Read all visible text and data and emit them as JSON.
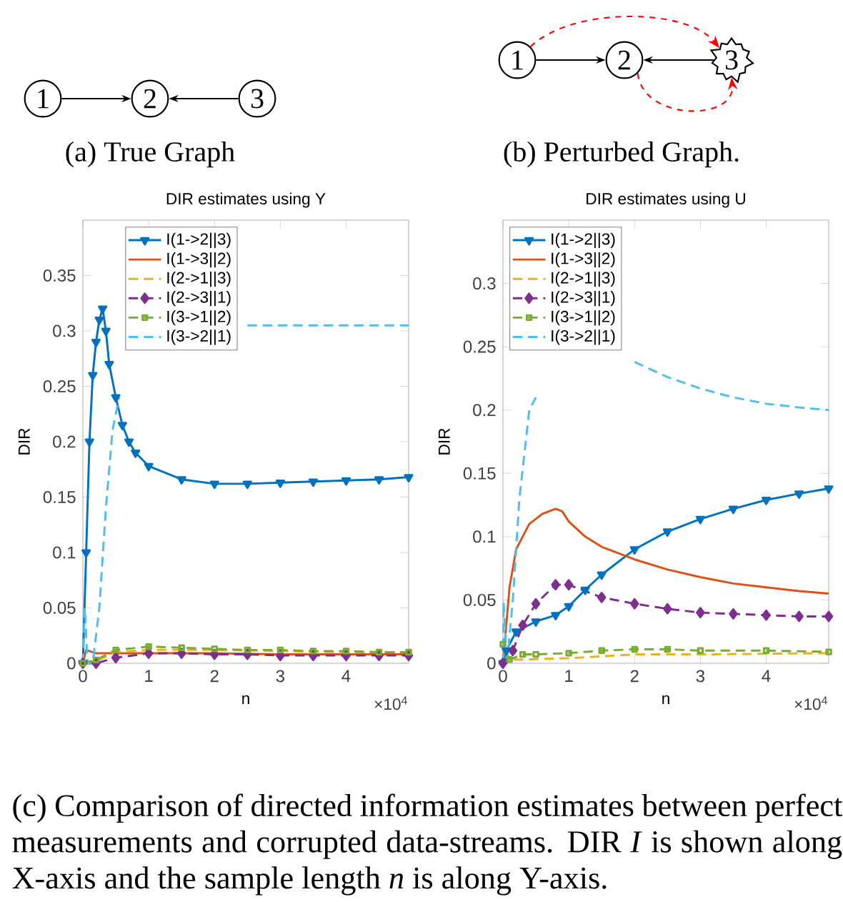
{
  "chart_data": [
    {
      "type": "other",
      "annotations": [
        "1",
        "2",
        "3",
        "(a) True Graph",
        "1",
        "2",
        "3",
        "(b) Perturbed Graph.",
        "(c) Comparison of directed information estimates between perfect measurements and corrupted data-streams. DIR *I* is shown along X-axis and the sample length *n* is along Y-axis."
      ]
    },
    {
      "type": "line",
      "title": "DIR estimates using Y",
      "xlabel": "n",
      "ylabel": "DIR",
      "annotations": [
        "×10$^{4}$"
      ],
      "xlim": [
        0,
        4.95
      ],
      "ylim": [
        0,
        0.4
      ],
      "xticks": [
        0,
        1,
        2,
        3,
        4
      ],
      "yticks": [
        0,
        0.05,
        0.1,
        0.15,
        0.2,
        0.25,
        0.3,
        0.35
      ],
      "legend": "top",
      "grid": false,
      "series": [
        {
          "name": "I(1->2||3)",
          "color": "#0072bd",
          "marker": "triangle",
          "line_style": "solid",
          "x": [
            0,
            0.05,
            0.1,
            0.15,
            0.2,
            0.25,
            0.3,
            0.35,
            0.4,
            0.5,
            0.6,
            0.7,
            0.8,
            1,
            1.5,
            2,
            2.5,
            3,
            3.5,
            4,
            4.5,
            4.95
          ],
          "values": [
            0,
            0.1,
            0.2,
            0.26,
            0.29,
            0.31,
            0.32,
            0.3,
            0.27,
            0.24,
            0.215,
            0.2,
            0.19,
            0.178,
            0.166,
            0.162,
            0.162,
            0.163,
            0.164,
            0.165,
            0.166,
            0.168
          ]
        },
        {
          "name": "I(1->3||2)",
          "color": "#d95319",
          "marker": "none",
          "line_style": "solid",
          "x": [
            0,
            0.05,
            0.2,
            0.5,
            1,
            2,
            3,
            4,
            4.95
          ],
          "values": [
            0,
            0.012,
            0.009,
            0.009,
            0.009,
            0.009,
            0.008,
            0.008,
            0.008
          ]
        },
        {
          "name": "I(2->1||3)",
          "color": "#edb120",
          "marker": "none",
          "line_style": "dashed",
          "x": [
            0,
            0.2,
            0.5,
            1,
            2,
            3,
            4,
            4.95
          ],
          "values": [
            0,
            0.002,
            0.01,
            0.012,
            0.012,
            0.011,
            0.01,
            0.01
          ]
        },
        {
          "name": "I(2->3||1)",
          "color": "#7e2f8e",
          "marker": "diamond",
          "line_style": "dashed",
          "x": [
            0,
            0.2,
            0.5,
            1,
            1.5,
            2,
            2.5,
            3,
            3.5,
            4,
            4.5,
            4.95
          ],
          "values": [
            0,
            0,
            0.005,
            0.009,
            0.009,
            0.008,
            0.008,
            0.007,
            0.007,
            0.007,
            0.007,
            0.007
          ]
        },
        {
          "name": "I(3->1||2)",
          "color": "#77ac30",
          "marker": "square",
          "line_style": "dashed",
          "x": [
            0,
            0.2,
            0.5,
            1,
            1.5,
            2,
            2.5,
            3,
            3.5,
            4,
            4.5,
            4.95
          ],
          "values": [
            0,
            0.003,
            0.012,
            0.015,
            0.014,
            0.013,
            0.012,
            0.012,
            0.011,
            0.011,
            0.01,
            0.01
          ]
        },
        {
          "name": "I(3->2||1)",
          "color": "#4dbeee",
          "marker": "none",
          "line_style": "dashed",
          "x": [
            0,
            0.03,
            0.07,
            0.15,
            0.25,
            0.35,
            0.45,
            0.55,
            1,
            2.5,
            3,
            3.5,
            4,
            4.5,
            4.95
          ],
          "values": [
            0,
            0.05,
            0,
            0,
            0.05,
            0.14,
            0.21,
            0.24,
            null,
            0.305,
            0.305,
            0.305,
            0.305,
            0.305,
            0.305
          ]
        }
      ]
    },
    {
      "type": "line",
      "title": "DIR estimates using U",
      "xlabel": "n",
      "ylabel": "DIR",
      "annotations": [
        "×10$^{4}$"
      ],
      "xlim": [
        0,
        4.95
      ],
      "ylim": [
        0,
        0.35
      ],
      "xticks": [
        0,
        1,
        2,
        3,
        4
      ],
      "yticks": [
        0,
        0.05,
        0.1,
        0.15,
        0.2,
        0.25,
        0.3
      ],
      "legend": "top left",
      "grid": false,
      "series": [
        {
          "name": "I(1->2||3)",
          "color": "#0072bd",
          "marker": "triangle",
          "line_style": "solid",
          "x": [
            0,
            0.05,
            0.2,
            0.5,
            0.8,
            1,
            1.25,
            1.5,
            2,
            2.5,
            3,
            3.5,
            4,
            4.5,
            4.95
          ],
          "values": [
            0,
            0.01,
            0.025,
            0.033,
            0.038,
            0.045,
            0.058,
            0.07,
            0.09,
            0.104,
            0.114,
            0.122,
            0.129,
            0.134,
            0.138
          ]
        },
        {
          "name": "I(1->3||2)",
          "color": "#d95319",
          "marker": "none",
          "line_style": "solid",
          "x": [
            0,
            0.05,
            0.1,
            0.2,
            0.4,
            0.6,
            0.8,
            0.9,
            1,
            1.25,
            1.5,
            2,
            2.5,
            3,
            3.5,
            4,
            4.5,
            4.95
          ],
          "values": [
            0,
            0.03,
            0.06,
            0.09,
            0.11,
            0.118,
            0.122,
            0.12,
            0.112,
            0.1,
            0.092,
            0.082,
            0.074,
            0.068,
            0.063,
            0.06,
            0.057,
            0.055
          ]
        },
        {
          "name": "I(2->1||3)",
          "color": "#edb120",
          "marker": "none",
          "line_style": "dashed",
          "x": [
            0,
            0.1,
            0.3,
            1,
            2,
            3,
            4.95
          ],
          "values": [
            0.01,
            0.003,
            0.003,
            0.004,
            0.007,
            0.007,
            0.008
          ]
        },
        {
          "name": "I(2->3||1)",
          "color": "#7e2f8e",
          "marker": "diamond",
          "line_style": "dashed",
          "x": [
            0,
            0.15,
            0.3,
            0.5,
            0.8,
            1,
            1.5,
            2,
            2.5,
            3,
            3.5,
            4,
            4.5,
            4.95
          ],
          "values": [
            0,
            0.01,
            0.03,
            0.047,
            0.062,
            0.062,
            0.052,
            0.047,
            0.043,
            0.04,
            0.039,
            0.038,
            0.037,
            0.037
          ]
        },
        {
          "name": "I(3->1||2)",
          "color": "#77ac30",
          "marker": "square",
          "line_style": "dashed",
          "x": [
            0,
            0.1,
            0.3,
            0.5,
            1,
            1.5,
            2,
            2.5,
            3,
            4,
            4.95
          ],
          "values": [
            0.015,
            0.003,
            0.007,
            0.007,
            0.008,
            0.01,
            0.011,
            0.011,
            0.01,
            0.01,
            0.009
          ]
        },
        {
          "name": "I(3->2||1)",
          "color": "#4dbeee",
          "marker": "none",
          "line_style": "dashed",
          "x": [
            0,
            0.01,
            0.06,
            0.15,
            0.25,
            0.4,
            0.5,
            1,
            2,
            2.5,
            3,
            3.5,
            4,
            4.5,
            4.95
          ],
          "values": [
            0,
            0.048,
            0,
            0.05,
            0.13,
            0.2,
            0.21,
            null,
            0.238,
            0.226,
            0.217,
            0.21,
            0.205,
            0.202,
            0.2
          ]
        }
      ]
    }
  ]
}
